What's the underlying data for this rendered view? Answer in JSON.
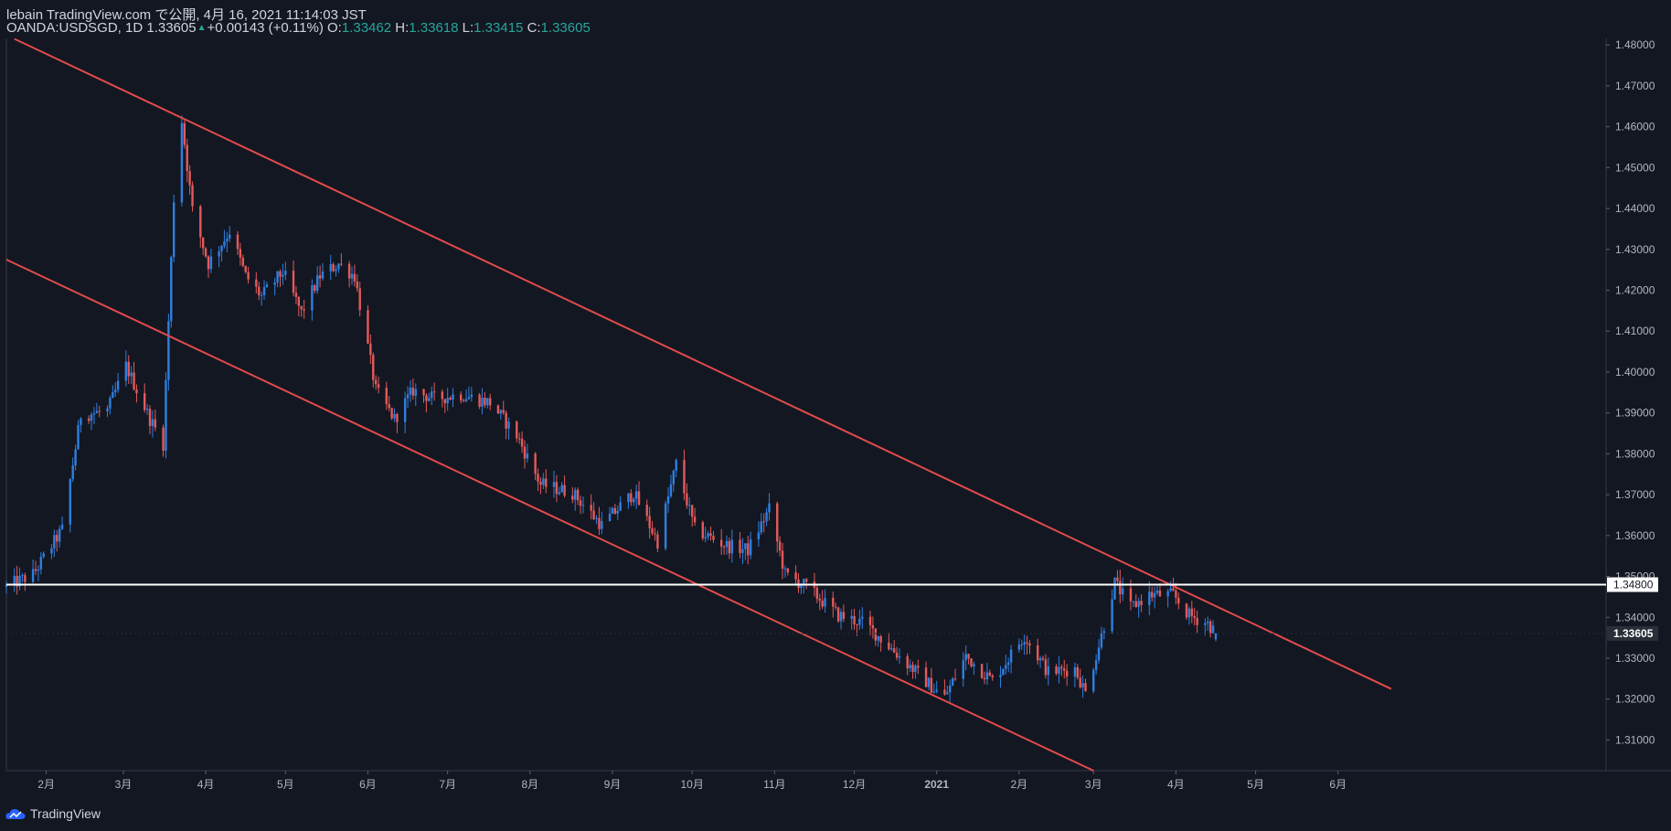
{
  "header": {
    "publisher": "lebain TradingView.com で公開, 4月 16, 2021 11:14:03 JST",
    "symbol": "OANDA:USDSGD, 1D 1.33605",
    "change": "+0.00143 (+0.11%)",
    "o_label": "O:",
    "o_value": "1.33462",
    "h_label": "H:",
    "h_value": "1.33618",
    "l_label": "L:",
    "l_value": "1.33415",
    "c_label": "C:",
    "c_value": "1.33605"
  },
  "footer": {
    "brand": "TradingView"
  },
  "colors": {
    "background": "#131722",
    "up": "#2f7fe0",
    "down": "#e35a5a",
    "trendline": "#e14b4b",
    "level": "#ffffff",
    "text": "#d1d4dc",
    "accent": "#26a69a"
  },
  "icons": {
    "logo": "tradingview-cloud-icon",
    "change_arrow": "triangle-up-icon"
  },
  "chart_data": {
    "type": "candlestick",
    "symbol": "OANDA:USDSGD",
    "interval": "1D",
    "x_ticks": [
      "2月",
      "3月",
      "4月",
      "5月",
      "6月",
      "7月",
      "8月",
      "9月",
      "10月",
      "11月",
      "12月",
      "2021",
      "2月",
      "3月",
      "4月",
      "5月",
      "6月"
    ],
    "y_ticks": [
      "1.48000",
      "1.47000",
      "1.46000",
      "1.45000",
      "1.44000",
      "1.43000",
      "1.42000",
      "1.41000",
      "1.40000",
      "1.39000",
      "1.38000",
      "1.37000",
      "1.36000",
      "1.35000",
      "1.34000",
      "1.33000",
      "1.32000",
      "1.31000"
    ],
    "y_range": [
      1.3025,
      1.4825
    ],
    "horizontal_line": {
      "value": 1.348,
      "label": "1.34800"
    },
    "last_price": {
      "value": 1.33605,
      "label": "1.33605"
    },
    "upper_trendline": {
      "from": [
        "2020-01-20",
        1.4815
      ],
      "to": [
        "2021-06-21",
        1.3225
      ]
    },
    "lower_trendline": {
      "from": [
        "2020-01-17",
        1.4275
      ],
      "to": [
        "2021-03-01",
        1.3025
      ]
    },
    "close_path": [
      [
        "2020-01-17",
        1.3475
      ],
      [
        "2020-01-27",
        1.3505
      ],
      [
        "2020-02-07",
        1.3615
      ],
      [
        "2020-02-14",
        1.3895
      ],
      [
        "2020-02-24",
        1.3905
      ],
      [
        "2020-03-02",
        1.4015
      ],
      [
        "2020-03-11",
        1.3885
      ],
      [
        "2020-03-16",
        1.3825
      ],
      [
        "2020-03-20",
        1.4425
      ],
      [
        "2020-03-23",
        1.4615
      ],
      [
        "2020-03-27",
        1.4395
      ],
      [
        "2020-04-02",
        1.4265
      ],
      [
        "2020-04-10",
        1.4345
      ],
      [
        "2020-04-16",
        1.4235
      ],
      [
        "2020-04-22",
        1.4185
      ],
      [
        "2020-04-30",
        1.4245
      ],
      [
        "2020-05-07",
        1.4145
      ],
      [
        "2020-05-14",
        1.4235
      ],
      [
        "2020-05-21",
        1.4265
      ],
      [
        "2020-05-27",
        1.4235
      ],
      [
        "2020-06-04",
        1.3955
      ],
      [
        "2020-06-11",
        1.3885
      ],
      [
        "2020-06-18",
        1.3955
      ],
      [
        "2020-06-26",
        1.3935
      ],
      [
        "2020-07-06",
        1.3945
      ],
      [
        "2020-07-17",
        1.3925
      ],
      [
        "2020-07-27",
        1.3845
      ],
      [
        "2020-08-05",
        1.3725
      ],
      [
        "2020-08-17",
        1.3705
      ],
      [
        "2020-08-28",
        1.3625
      ],
      [
        "2020-09-09",
        1.3705
      ],
      [
        "2020-09-18",
        1.3585
      ],
      [
        "2020-09-25",
        1.3775
      ],
      [
        "2020-10-02",
        1.3615
      ],
      [
        "2020-10-14",
        1.3575
      ],
      [
        "2020-10-22",
        1.3565
      ],
      [
        "2020-10-30",
        1.3665
      ],
      [
        "2020-11-05",
        1.3505
      ],
      [
        "2020-11-13",
        1.3475
      ],
      [
        "2020-11-25",
        1.3405
      ],
      [
        "2020-12-05",
        1.3385
      ],
      [
        "2020-12-18",
        1.3305
      ],
      [
        "2020-12-31",
        1.3225
      ],
      [
        "2021-01-04",
        1.3205
      ],
      [
        "2021-01-12",
        1.3305
      ],
      [
        "2021-01-22",
        1.3245
      ],
      [
        "2021-02-03",
        1.3355
      ],
      [
        "2021-02-12",
        1.3265
      ],
      [
        "2021-02-22",
        1.3275
      ],
      [
        "2021-02-26",
        1.3215
      ],
      [
        "2021-03-04",
        1.3355
      ],
      [
        "2021-03-09",
        1.3485
      ],
      [
        "2021-03-15",
        1.3425
      ],
      [
        "2021-03-22",
        1.3455
      ],
      [
        "2021-03-31",
        1.3455
      ],
      [
        "2021-04-06",
        1.3405
      ],
      [
        "2021-04-13",
        1.3385
      ],
      [
        "2021-04-16",
        1.33605
      ]
    ],
    "last_candle": {
      "date": "2021-04-16",
      "open": 1.33462,
      "high": 1.33618,
      "low": 1.33415,
      "close": 1.33605
    }
  }
}
